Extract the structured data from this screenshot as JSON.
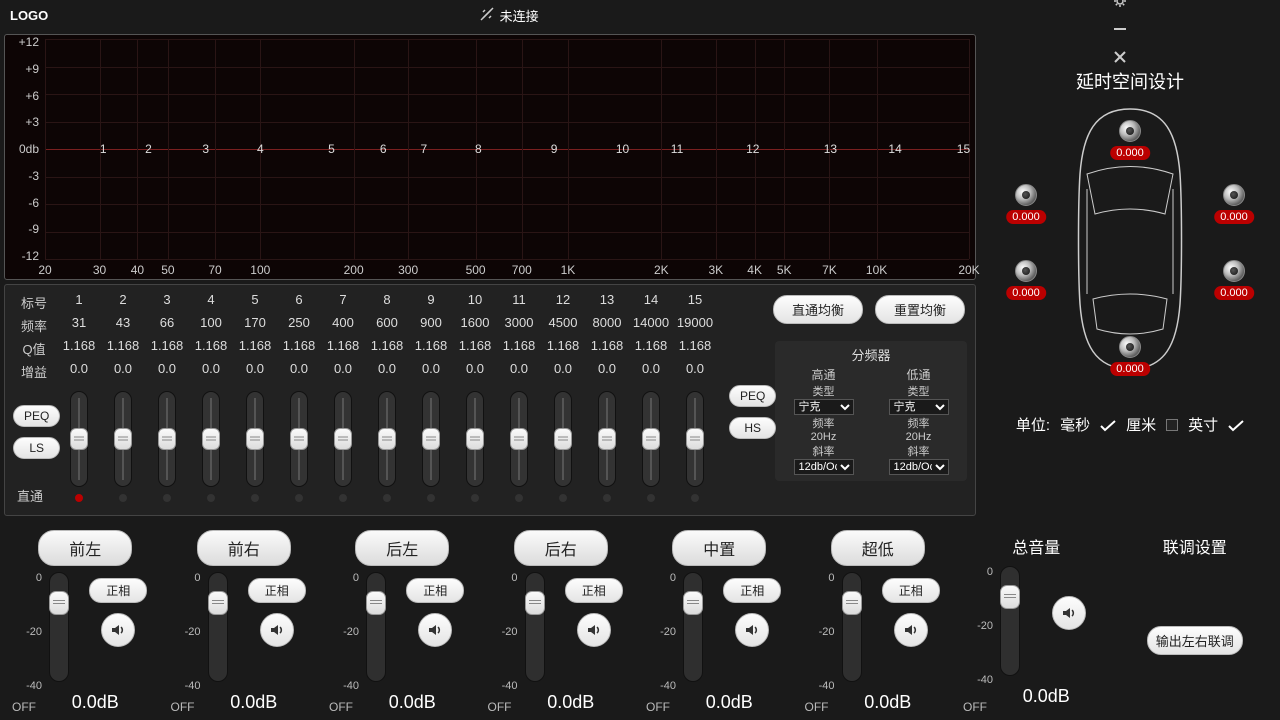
{
  "titlebar": {
    "logo": "LOGO",
    "status": "未连接"
  },
  "eq_graph": {
    "y_ticks": [
      "+12",
      "+9",
      "+6",
      "+3",
      "0db",
      "-3",
      "-6",
      "-9",
      "-12"
    ],
    "x_ticks": [
      {
        "p": 0,
        "l": "20"
      },
      {
        "p": 5.9,
        "l": "30"
      },
      {
        "p": 10,
        "l": "40"
      },
      {
        "p": 13.3,
        "l": "50"
      },
      {
        "p": 18.4,
        "l": "70"
      },
      {
        "p": 23.3,
        "l": "100"
      },
      {
        "p": 33.4,
        "l": "200"
      },
      {
        "p": 39.3,
        "l": "300"
      },
      {
        "p": 46.6,
        "l": "500"
      },
      {
        "p": 51.6,
        "l": "700"
      },
      {
        "p": 56.6,
        "l": "1K"
      },
      {
        "p": 66.7,
        "l": "2K"
      },
      {
        "p": 72.6,
        "l": "3K"
      },
      {
        "p": 76.8,
        "l": "4K"
      },
      {
        "p": 80,
        "l": "5K"
      },
      {
        "p": 84.9,
        "l": "7K"
      },
      {
        "p": 90,
        "l": "10K"
      },
      {
        "p": 100,
        "l": "20K"
      }
    ],
    "markers": [
      {
        "p": 6.3,
        "n": "1"
      },
      {
        "p": 11.2,
        "n": "2"
      },
      {
        "p": 17.4,
        "n": "3"
      },
      {
        "p": 23.3,
        "n": "4"
      },
      {
        "p": 31,
        "n": "5"
      },
      {
        "p": 36.6,
        "n": "6"
      },
      {
        "p": 41.0,
        "n": "7"
      },
      {
        "p": 46.9,
        "n": "8"
      },
      {
        "p": 55.1,
        "n": "9"
      },
      {
        "p": 62.5,
        "n": "10"
      },
      {
        "p": 68.4,
        "n": "11"
      },
      {
        "p": 76.6,
        "n": "12"
      },
      {
        "p": 85.0,
        "n": "13"
      },
      {
        "p": 92.0,
        "n": "14"
      },
      {
        "p": 99.4,
        "n": "15"
      }
    ]
  },
  "eq_table": {
    "row_headers": [
      "标号",
      "频率",
      "Q值",
      "增益"
    ],
    "indices": [
      "1",
      "2",
      "3",
      "4",
      "5",
      "6",
      "7",
      "8",
      "9",
      "10",
      "11",
      "12",
      "13",
      "14",
      "15"
    ],
    "freq": [
      "31",
      "43",
      "66",
      "100",
      "170",
      "250",
      "400",
      "600",
      "900",
      "1600",
      "3000",
      "4500",
      "8000",
      "14000",
      "19000"
    ],
    "q": [
      "1.168",
      "1.168",
      "1.168",
      "1.168",
      "1.168",
      "1.168",
      "1.168",
      "1.168",
      "1.168",
      "1.168",
      "1.168",
      "1.168",
      "1.168",
      "1.168",
      "1.168"
    ],
    "gain": [
      "0.0",
      "0.0",
      "0.0",
      "0.0",
      "0.0",
      "0.0",
      "0.0",
      "0.0",
      "0.0",
      "0.0",
      "0.0",
      "0.0",
      "0.0",
      "0.0",
      "0.0"
    ],
    "bypass_label": "直通",
    "bypass": [
      true,
      false,
      false,
      false,
      false,
      false,
      false,
      false,
      false,
      false,
      false,
      false,
      false,
      false,
      false
    ],
    "btn_bypass": "直通均衡",
    "btn_reset": "重置均衡",
    "type_btns": [
      "PEQ",
      "LS"
    ]
  },
  "crossover": {
    "title": "分频器",
    "cols": [
      "高通",
      "低通"
    ],
    "type_label": "类型",
    "type_sel": "宁克",
    "freq_label": "频率",
    "freq_val": "20Hz",
    "slope_label": "斜率",
    "slope_sel": "12db/Oct",
    "left_btns": [
      "PEQ",
      "HS"
    ]
  },
  "delay": {
    "title": "延时空间设计",
    "vals": {
      "c": "0.000",
      "fl": "0.000",
      "fr": "0.000",
      "rl": "0.000",
      "rr": "0.000",
      "sub": "0.000"
    },
    "unit_label": "单位:",
    "units": [
      "毫秒",
      "厘米",
      "英寸"
    ]
  },
  "channels": {
    "names": [
      "前左",
      "前右",
      "后左",
      "后右",
      "中置",
      "超低"
    ],
    "phase": "正相",
    "scale": [
      "0",
      "-20",
      "-40"
    ],
    "value": "0.0dB",
    "off": "OFF"
  },
  "master": {
    "title": "总音量",
    "value": "0.0dB",
    "off": "OFF"
  },
  "link": {
    "title": "联调设置",
    "btn": "输出左右联调"
  }
}
